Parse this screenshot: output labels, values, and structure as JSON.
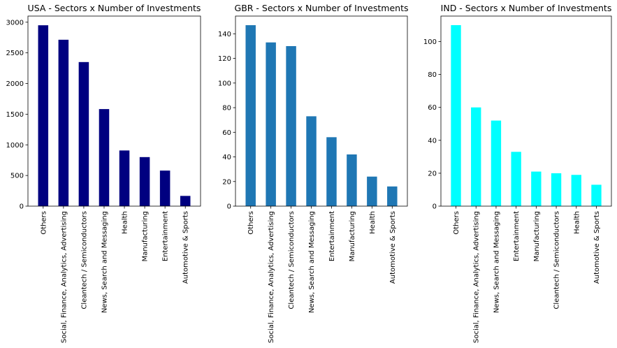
{
  "chart_data": [
    {
      "type": "bar",
      "title": "USA - Sectors x Number of Investments",
      "color": "#000080",
      "categories": [
        "Others",
        "Social, Finance, Analytics, Advertising",
        "Cleantech / Semiconductors",
        "News, Search and Messaging",
        "Health",
        "Manufacturing",
        "Entertainment",
        "Automotive & Sports"
      ],
      "values": [
        2950,
        2714,
        2350,
        1583,
        908,
        800,
        580,
        167
      ],
      "ylim": [
        0,
        3100
      ],
      "yticks": [
        0,
        500,
        1000,
        1500,
        2000,
        2500,
        3000
      ],
      "xlabel": "",
      "ylabel": ""
    },
    {
      "type": "bar",
      "title": "GBR - Sectors x Number of Investments",
      "color": "#1f77b4",
      "categories": [
        "Others",
        "Social, Finance, Analytics, Advertising",
        "Cleantech / Semiconductors",
        "News, Search and Messaging",
        "Entertainment",
        "Manufacturing",
        "Health",
        "Automotive & Sports"
      ],
      "values": [
        147,
        133,
        130,
        73,
        56,
        42,
        24,
        16
      ],
      "ylim": [
        0,
        154.4
      ],
      "yticks": [
        0,
        20,
        40,
        60,
        80,
        100,
        120,
        140
      ],
      "xlabel": "",
      "ylabel": ""
    },
    {
      "type": "bar",
      "title": "IND - Sectors x Number of Investments",
      "color": "#00ffff",
      "categories": [
        "Others",
        "Social, Finance, Analytics, Advertising",
        "News, Search and Messaging",
        "Entertainment",
        "Manufacturing",
        "Cleantech / Semiconductors",
        "Health",
        "Automotive & Sports"
      ],
      "values": [
        110,
        60,
        52,
        33,
        21,
        20,
        19,
        13
      ],
      "ylim": [
        0,
        115.5
      ],
      "yticks": [
        0,
        20,
        40,
        60,
        80,
        100
      ],
      "xlabel": "",
      "ylabel": ""
    }
  ]
}
